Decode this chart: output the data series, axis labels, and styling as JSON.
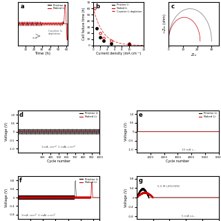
{
  "bg_color": "#ffffff",
  "panel_b": {
    "pristine_x": [
      1,
      2,
      3,
      5,
      10
    ],
    "pristine_y": [
      28,
      13,
      8,
      3,
      2
    ],
    "naked_x": [
      0.5,
      2,
      3,
      5,
      10
    ],
    "naked_y": [
      60,
      20,
      12,
      8,
      3
    ],
    "xlabel": "Current density (mA cm⁻²)",
    "ylabel": "Cell failure time (h)",
    "ylim": [
      0,
      70
    ],
    "xlim": [
      0,
      14
    ]
  },
  "colors": {
    "pristine": "#000000",
    "naked": "#cc0000",
    "dashed": "#cc0000"
  }
}
